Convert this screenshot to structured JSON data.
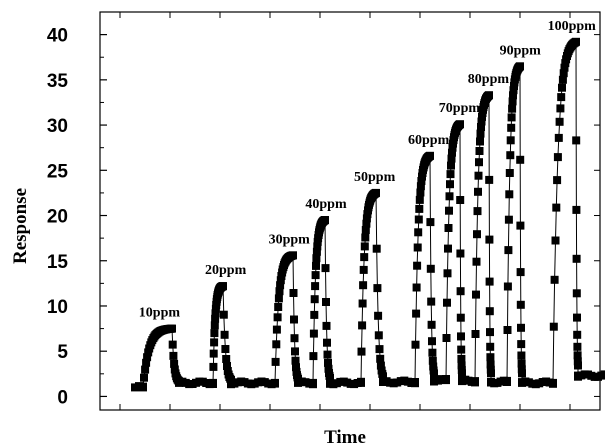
{
  "chart_data": {
    "type": "line",
    "xlabel": "Time",
    "ylabel": "Response",
    "ylim": [
      -1.5,
      42.5
    ],
    "yticks": [
      0,
      5,
      10,
      15,
      20,
      25,
      30,
      35,
      40
    ],
    "xticks_labeled": false,
    "grid": false,
    "legend": "none",
    "marker": "square",
    "color": "#000000",
    "x_unit": "arbitrary time",
    "baseline_x": [
      [
        0.0,
        0.8
      ],
      [
        4.4,
        7.8
      ],
      [
        9.6,
        14.0
      ],
      [
        16.3,
        17.8
      ],
      [
        19.5,
        22.6
      ],
      [
        24.8,
        28.0
      ],
      [
        29.9,
        31.1
      ],
      [
        32.7,
        34.0
      ],
      [
        35.6,
        37.2
      ],
      [
        38.7,
        41.8
      ],
      [
        44.3,
        47.3
      ]
    ],
    "baseline_y": [
      1.0,
      1.5,
      1.5,
      1.5,
      1.5,
      1.6,
      1.8,
      1.7,
      1.6,
      1.5,
      2.3
    ],
    "pulses": [
      {
        "label": "10ppm",
        "x_on": 0.8,
        "x_peak_end": 3.7,
        "x_off": 4.4,
        "peak": 7.5
      },
      {
        "label": "20ppm",
        "x_on": 7.8,
        "x_peak_end": 8.8,
        "x_off": 9.6,
        "peak": 12.2
      },
      {
        "label": "30ppm",
        "x_on": 14.0,
        "x_peak_end": 15.8,
        "x_off": 16.3,
        "peak": 15.6
      },
      {
        "label": "40ppm",
        "x_on": 17.8,
        "x_peak_end": 19.0,
        "x_off": 19.5,
        "peak": 19.5
      },
      {
        "label": "50ppm",
        "x_on": 22.6,
        "x_peak_end": 24.1,
        "x_off": 24.8,
        "peak": 22.5
      },
      {
        "label": "60ppm",
        "x_on": 28.0,
        "x_peak_end": 29.5,
        "x_off": 29.9,
        "peak": 26.6
      },
      {
        "label": "70ppm",
        "x_on": 31.1,
        "x_peak_end": 32.5,
        "x_off": 32.7,
        "peak": 30.1
      },
      {
        "label": "80ppm",
        "x_on": 34.0,
        "x_peak_end": 35.4,
        "x_off": 35.6,
        "peak": 33.3
      },
      {
        "label": "90ppm",
        "x_on": 37.2,
        "x_peak_end": 38.5,
        "x_off": 38.7,
        "peak": 36.5
      },
      {
        "label": "100ppm",
        "x_on": 41.8,
        "x_peak_end": 44.1,
        "x_off": 44.3,
        "peak": 39.2
      }
    ]
  }
}
